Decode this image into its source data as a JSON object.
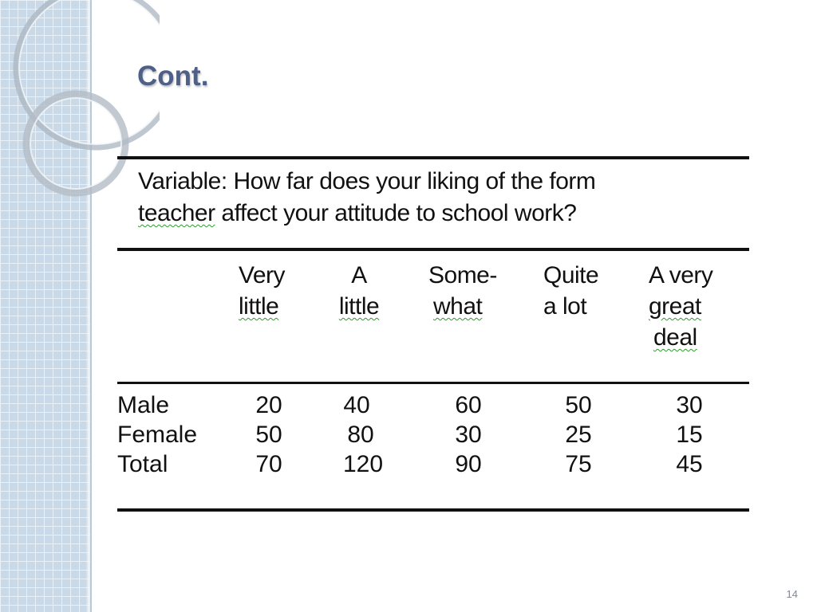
{
  "slide": {
    "title": "Cont.",
    "page_number": "14"
  },
  "table": {
    "variable_line1": "Variable: How far does your liking of the form",
    "variable_line2_word1": "teacher",
    "variable_line2_rest": " affect your attitude to school work?",
    "columns": [
      {
        "lines": [
          "Very",
          "little"
        ]
      },
      {
        "lines": [
          "A",
          "little"
        ]
      },
      {
        "lines": [
          "Some-",
          "what"
        ]
      },
      {
        "lines": [
          "Quite",
          "a lot"
        ]
      },
      {
        "lines": [
          "A very",
          "great",
          "deal"
        ]
      }
    ],
    "rows": [
      {
        "label": "Male",
        "values": [
          "20",
          "40",
          "60",
          "50",
          "30"
        ]
      },
      {
        "label": "Female",
        "values": [
          "50",
          "80",
          "30",
          "25",
          "15"
        ]
      },
      {
        "label": "Total",
        "values": [
          "70",
          "120",
          "90",
          "75",
          "45"
        ]
      }
    ]
  }
}
